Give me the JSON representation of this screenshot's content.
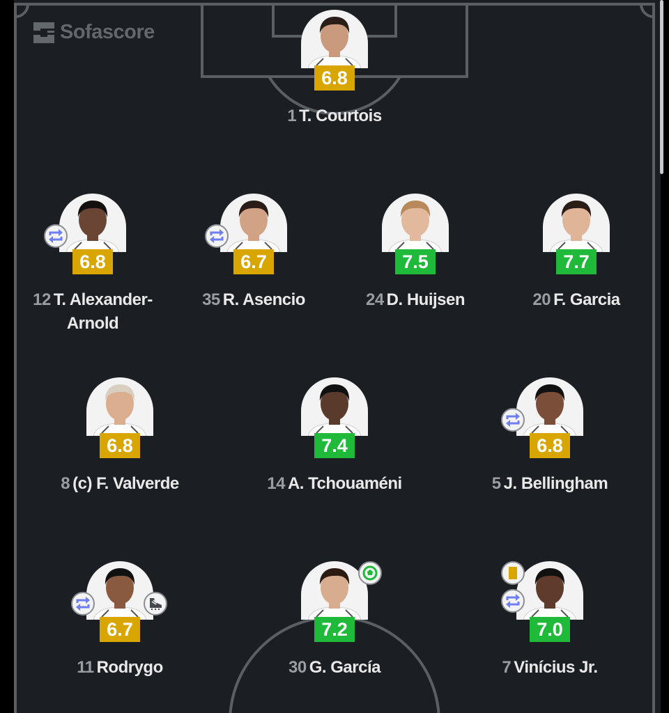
{
  "brand": {
    "name": "Sofascore"
  },
  "colors": {
    "pitch": "#1b1e22",
    "lines": "#5a5f63",
    "rating_avg": "#d9a600",
    "rating_good": "#1fba3a",
    "substitution": "#6f7ef0",
    "goal": "#1fba3a",
    "yellow_card": "#d9a600"
  },
  "players": [
    {
      "number": "1",
      "name": "T. Courtois",
      "rating": "6.8",
      "rating_level": "avg",
      "icons": []
    },
    {
      "number": "12",
      "name": "T. Alexander-Arnold",
      "rating": "6.8",
      "rating_level": "avg",
      "icons": [
        "substitution-icon"
      ]
    },
    {
      "number": "35",
      "name": "R. Asencio",
      "rating": "6.7",
      "rating_level": "avg",
      "icons": [
        "substitution-icon"
      ]
    },
    {
      "number": "24",
      "name": "D. Huijsen",
      "rating": "7.5",
      "rating_level": "good",
      "icons": []
    },
    {
      "number": "20",
      "name": "F. Garcia",
      "rating": "7.7",
      "rating_level": "good",
      "icons": []
    },
    {
      "number": "8",
      "name": "(c) F. Valverde",
      "rating": "6.8",
      "rating_level": "avg",
      "icons": []
    },
    {
      "number": "14",
      "name": "A. Tchouaméni",
      "rating": "7.4",
      "rating_level": "good",
      "icons": []
    },
    {
      "number": "5",
      "name": "J. Bellingham",
      "rating": "6.8",
      "rating_level": "avg",
      "icons": [
        "substitution-icon"
      ]
    },
    {
      "number": "11",
      "name": "Rodrygo",
      "rating": "6.7",
      "rating_level": "avg",
      "icons": [
        "substitution-icon",
        "assist-boot-icon"
      ]
    },
    {
      "number": "30",
      "name": "G. García",
      "rating": "7.2",
      "rating_level": "good",
      "icons": [
        "goal-icon"
      ]
    },
    {
      "number": "7",
      "name": "Vinícius Jr.",
      "rating": "7.0",
      "rating_level": "good",
      "icons": [
        "yellow-card-icon",
        "substitution-icon"
      ]
    }
  ]
}
